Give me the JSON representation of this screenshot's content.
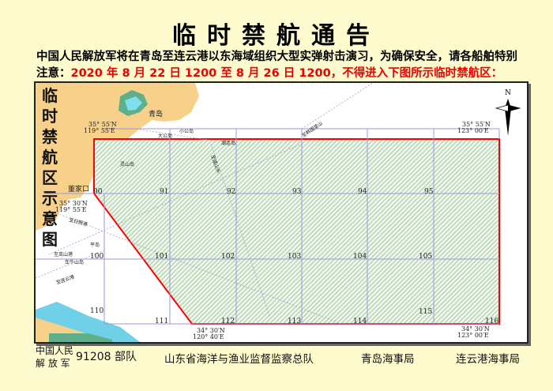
{
  "title": "临时禁航通告",
  "notice": {
    "line1": "中国人民解放军将在青岛至连云港以东海域组织大型实弹射击演习，为确保安全，请各船舶特别",
    "line2_prefix": "注意：",
    "line2_red": "2020 年 8 月 22 日 1200 至 8 月 26 日 1200，不得进入下图所示临时禁航区："
  },
  "map": {
    "side_title": [
      "临",
      "时",
      "禁",
      "航",
      "区",
      "示",
      "意",
      "图"
    ],
    "north_label": "N",
    "places": {
      "qingdao": "青岛",
      "dongjiakou": "董家口",
      "daguandao": "大公岛",
      "xiaogongdao": "小公岛",
      "chaoliandao": "潮连岛",
      "lingshandao": "灵山岛",
      "pingdao": "平岛",
      "dongrizhao": "至日照港",
      "lanshan": "至岚山港",
      "qianiushandao": "车牛山岛",
      "lianyungang": "至连云港",
      "route1": "至韩国釜山",
      "route2": "至成山头"
    },
    "coords": {
      "nw_top": [
        "35° 55′N",
        "119° 55′E"
      ],
      "ne": [
        "35° 55′N",
        "123° 00′E"
      ],
      "w_mid": [
        "35° 30′N",
        "119° 55′E"
      ],
      "sw": [
        "34° 30′N",
        "120° 40′E"
      ],
      "se": [
        "34° 30′N",
        "123° 00′E"
      ]
    },
    "cells": [
      "90",
      "91",
      "92",
      "93",
      "94",
      "95",
      "100",
      "101",
      "102",
      "103",
      "104",
      "105",
      "110",
      "111",
      "112",
      "113",
      "114",
      "115",
      "116"
    ],
    "colors": {
      "zone_border": "#ff0000",
      "hatch": "#8fbf8f",
      "land": "#f7d089",
      "grid": "#9a9ad8"
    }
  },
  "footer": {
    "pla_line1": "中国人民",
    "pla_line2": "解 放 军",
    "unit": "91208 部队",
    "org1": "山东省海洋与渔业监督监察总队",
    "org2": "青岛海事局",
    "org3": "连云港海事局"
  }
}
